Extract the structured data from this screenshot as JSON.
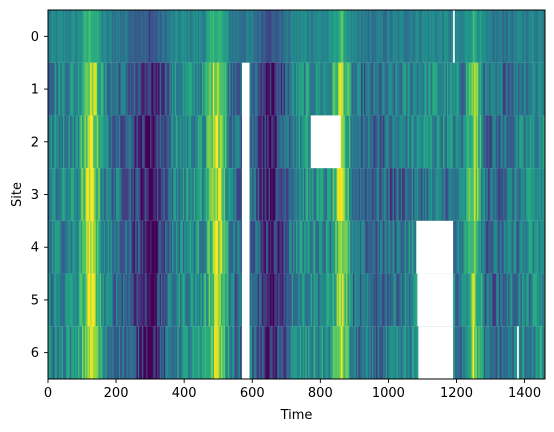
{
  "chart_data": {
    "type": "heatmap",
    "title": "",
    "xlabel": "Time",
    "ylabel": "Site",
    "colormap": "viridis",
    "xlim": [
      0,
      1460
    ],
    "ylim": [
      6.5,
      -0.5
    ],
    "x_ticks": [
      0,
      200,
      400,
      600,
      800,
      1000,
      1200,
      1400
    ],
    "y_ticks": [
      0,
      1,
      2,
      3,
      4,
      5,
      6
    ],
    "sites": [
      0,
      1,
      2,
      3,
      4,
      5,
      6
    ],
    "n_time_steps": 1460,
    "missing_regions": [
      {
        "site_start": 1,
        "site_end": 6,
        "time_start": 570,
        "time_end": 592
      },
      {
        "site_start": 2,
        "site_end": 2,
        "time_start": 772,
        "time_end": 860
      },
      {
        "site_start": 4,
        "site_end": 4,
        "time_start": 1082,
        "time_end": 1190
      },
      {
        "site_start": 5,
        "site_end": 5,
        "time_start": 1085,
        "time_end": 1190
      },
      {
        "site_start": 6,
        "site_end": 6,
        "time_start": 1088,
        "time_end": 1190
      },
      {
        "site_start": 0,
        "site_end": 0,
        "time_start": 1190,
        "time_end": 1195
      },
      {
        "site_start": 6,
        "site_end": 6,
        "time_start": 1378,
        "time_end": 1383
      }
    ],
    "high_value_periods": [
      {
        "time_start": 100,
        "time_end": 150
      },
      {
        "time_start": 470,
        "time_end": 520
      },
      {
        "time_start": 840,
        "time_end": 880
      },
      {
        "time_start": 1230,
        "time_end": 1270
      }
    ],
    "low_value_periods": [
      {
        "time_start": 250,
        "time_end": 350
      },
      {
        "time_start": 620,
        "time_end": 700
      }
    ]
  }
}
